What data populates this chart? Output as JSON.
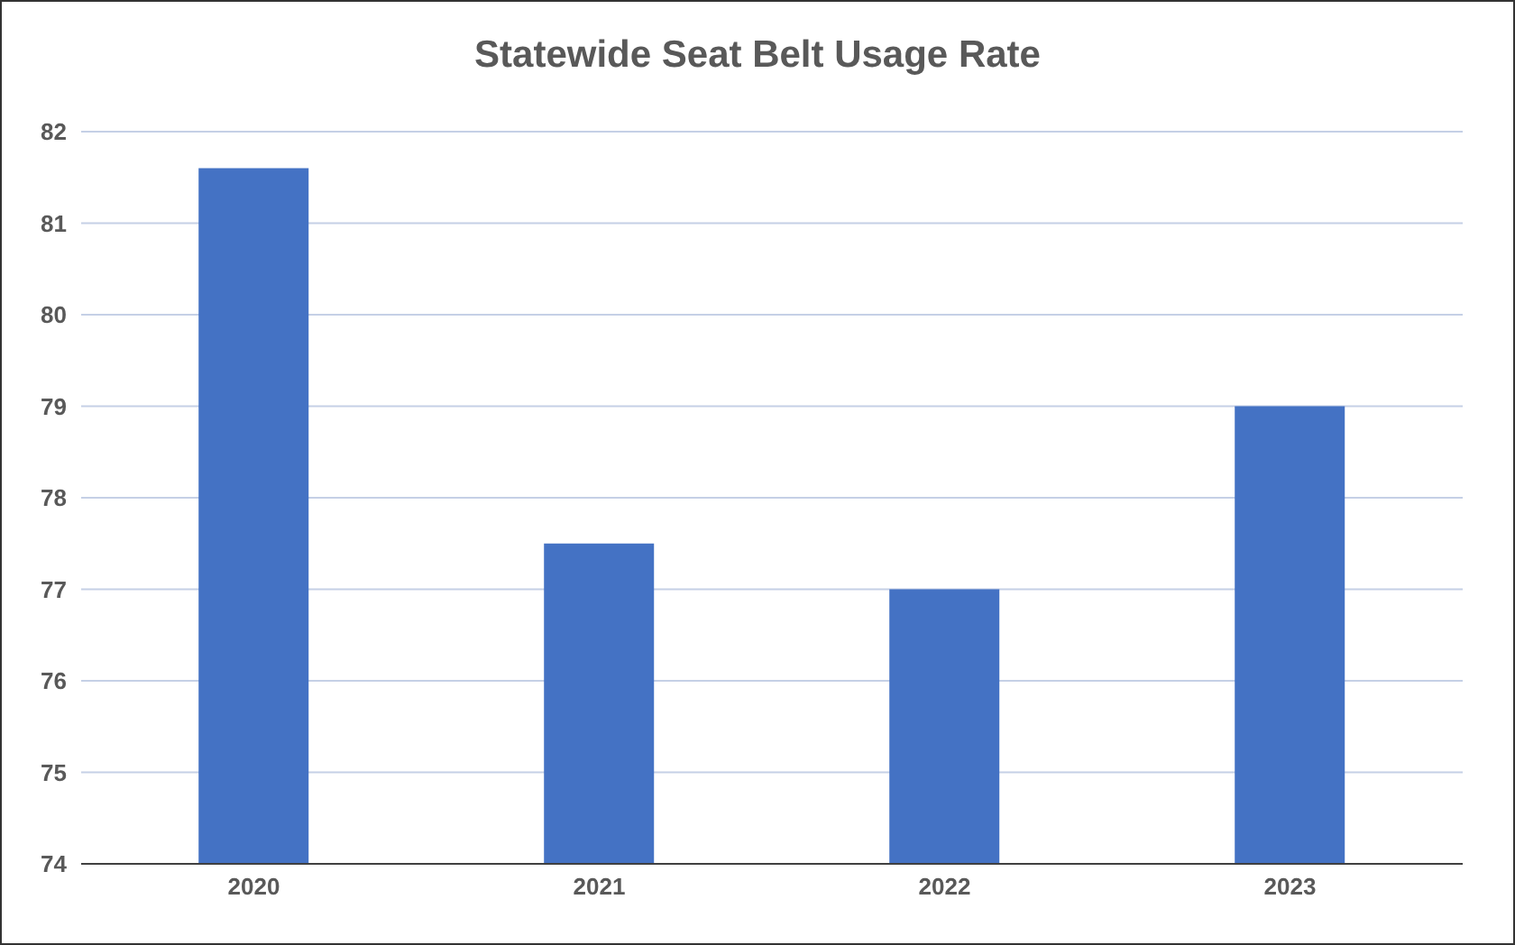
{
  "chart_data": {
    "type": "bar",
    "title": "Statewide Seat Belt Usage Rate",
    "categories": [
      "2020",
      "2021",
      "2022",
      "2023"
    ],
    "values": [
      81.6,
      77.5,
      77.0,
      79.0
    ],
    "color": "#4472c4",
    "ylim": [
      74,
      82
    ],
    "yticks": [
      74,
      75,
      76,
      77,
      78,
      79,
      80,
      81,
      82
    ],
    "grid": "y"
  }
}
